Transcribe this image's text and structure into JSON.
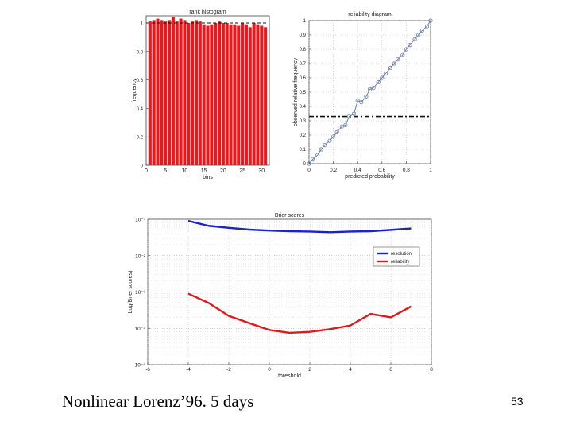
{
  "slide": {
    "caption": "Nonlinear Lorenz’96. 5 days",
    "page_number": "53"
  },
  "chart_data": [
    {
      "type": "bar",
      "title": "rank histogram",
      "xlabel": "bins",
      "ylabel": "frequency",
      "xlim": [
        0,
        32
      ],
      "ylim": [
        0,
        1.05
      ],
      "x_ticks": [
        "0",
        "5",
        "10",
        "15",
        "20",
        "25",
        "30"
      ],
      "y_ticks": [
        "0",
        "0.2",
        "0.4",
        "0.6",
        "0.8",
        "1"
      ],
      "bar_color": "#e8181c",
      "reference_line": 1.0,
      "categories": [
        1,
        2,
        3,
        4,
        5,
        6,
        7,
        8,
        9,
        10,
        11,
        12,
        13,
        14,
        15,
        16,
        17,
        18,
        19,
        20,
        21,
        22,
        23,
        24,
        25,
        26,
        27,
        28,
        29,
        30,
        31
      ],
      "values": [
        1.01,
        1.02,
        1.03,
        1.02,
        1.01,
        1.02,
        1.04,
        1.01,
        1.03,
        1.02,
        1.0,
        1.01,
        1.02,
        1.01,
        0.99,
        0.98,
        0.99,
        1.0,
        1.01,
        1.0,
        1.0,
        0.99,
        0.99,
        0.98,
        1.0,
        0.99,
        0.97,
        1.0,
        0.99,
        0.98,
        0.97
      ]
    },
    {
      "type": "scatter",
      "title": "reliability diagram",
      "xlabel": "predicted probability",
      "ylabel": "observed relative frequency",
      "xlim": [
        0,
        1
      ],
      "ylim": [
        0,
        1
      ],
      "x_ticks": [
        "0",
        "0.2",
        "0.4",
        "0.6",
        "0.8",
        "1"
      ],
      "y_ticks": [
        "0",
        "0.1",
        "0.2",
        "0.3",
        "0.4",
        "0.5",
        "0.6",
        "0.7",
        "0.8",
        "0.9",
        "1"
      ],
      "grid": true,
      "climatology_line": 0.33,
      "line_color": "#6d7fa8",
      "x": [
        0.0,
        0.03,
        0.07,
        0.1,
        0.13,
        0.17,
        0.2,
        0.23,
        0.27,
        0.3,
        0.33,
        0.37,
        0.4,
        0.43,
        0.47,
        0.5,
        0.53,
        0.57,
        0.6,
        0.63,
        0.67,
        0.7,
        0.73,
        0.77,
        0.8,
        0.83,
        0.87,
        0.9,
        0.93,
        0.97,
        1.0
      ],
      "y": [
        0.0,
        0.03,
        0.06,
        0.1,
        0.13,
        0.16,
        0.19,
        0.22,
        0.26,
        0.27,
        0.33,
        0.35,
        0.44,
        0.43,
        0.47,
        0.52,
        0.53,
        0.57,
        0.6,
        0.63,
        0.67,
        0.7,
        0.73,
        0.76,
        0.8,
        0.83,
        0.87,
        0.9,
        0.93,
        0.96,
        1.0
      ]
    },
    {
      "type": "line",
      "title": "Brier scores",
      "xlabel": "threshold",
      "ylabel": "Log(Brier scores)",
      "log_y": true,
      "xlim": [
        -6,
        8
      ],
      "ylim_exp": [
        -5,
        -1
      ],
      "x_ticks": [
        "-6",
        "-4",
        "-2",
        "0",
        "2",
        "4",
        "6",
        "8"
      ],
      "y_ticks": [
        "10⁻¹",
        "10⁻²",
        "10⁻³",
        "10⁻⁴",
        "10⁻⁵"
      ],
      "grid": true,
      "legend_position": "right",
      "x": [
        -4,
        -3,
        -2,
        -1,
        0,
        1,
        2,
        3,
        4,
        5,
        6,
        7
      ],
      "series": [
        {
          "name": "resolution",
          "color": "#1a22c8",
          "values": [
            0.09,
            0.066,
            0.058,
            0.052,
            0.049,
            0.047,
            0.046,
            0.044,
            0.046,
            0.047,
            0.051,
            0.056
          ]
        },
        {
          "name": "reliability",
          "color": "#e01a1a",
          "values": [
            0.0009,
            0.0005,
            0.00022,
            0.00014,
            9e-05,
            7.5e-05,
            8e-05,
            9.5e-05,
            0.00012,
            0.00025,
            0.0002,
            0.0004
          ]
        }
      ]
    }
  ]
}
